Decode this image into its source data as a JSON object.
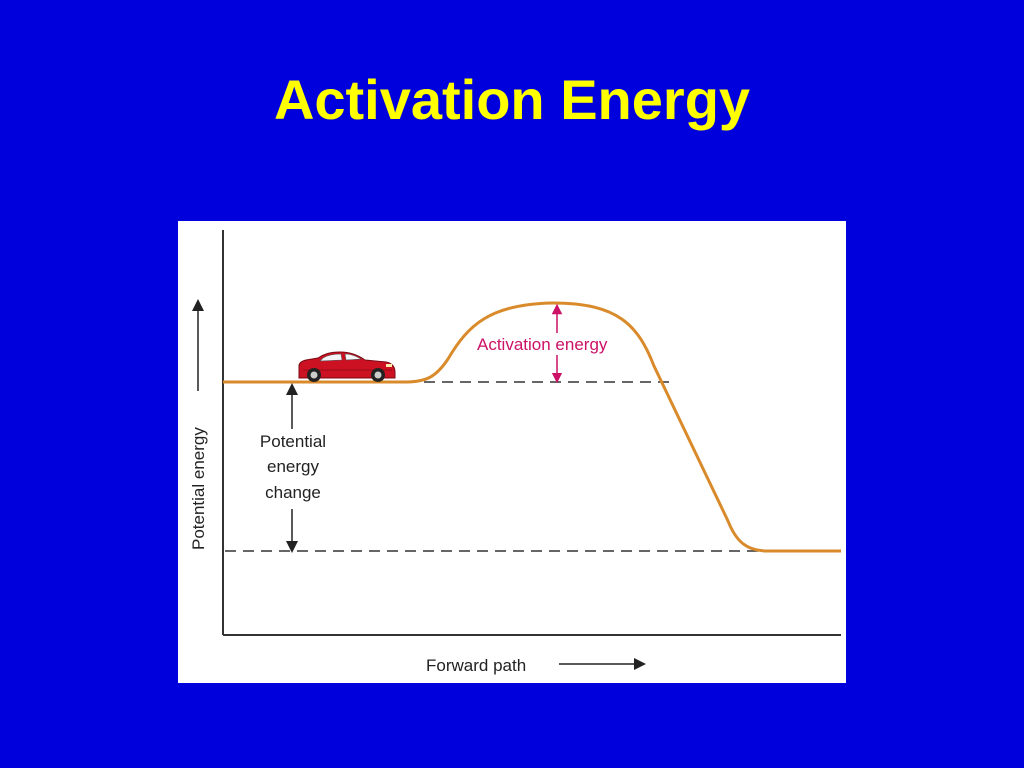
{
  "slide": {
    "title": "Activation Energy",
    "background_color": "#0000dd",
    "title_color": "#ffff00"
  },
  "diagram": {
    "y_axis_label": "Potential energy",
    "x_axis_label": "Forward path",
    "activation_label": "Activation energy",
    "change_label_lines": [
      "Potential",
      "energy",
      "change"
    ],
    "curve_color": "#d98a2b",
    "activation_color": "#cc1166",
    "object_icon": "red-car-icon"
  }
}
